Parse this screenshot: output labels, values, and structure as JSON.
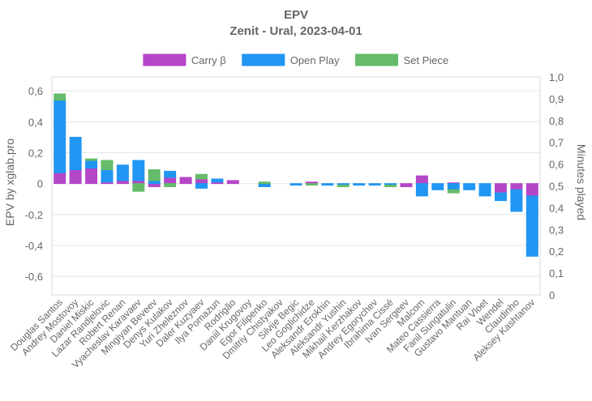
{
  "chart_data": {
    "type": "bar",
    "stacked": true,
    "title": "EPV",
    "subtitle": "Zenit - Ural, 2023-04-01",
    "ylabel": "EPV  by xglab.pro",
    "y2label": "Minutes played",
    "ylim": [
      -0.72,
      0.69
    ],
    "y2lim": [
      0,
      1
    ],
    "yticks": [
      "0,6",
      "0,4",
      "0,2",
      "0",
      "-0,2",
      "-0,4",
      "-0,6"
    ],
    "ytick_values": [
      0.6,
      0.4,
      0.2,
      0,
      -0.2,
      -0.4,
      -0.6
    ],
    "y2ticks": [
      "1,0",
      "0,9",
      "0,8",
      "0,7",
      "0,6",
      "0,5",
      "0,4",
      "0,3",
      "0,2",
      "0,1",
      "0"
    ],
    "y2tick_values": [
      1.0,
      0.9,
      0.8,
      0.7,
      0.6,
      0.5,
      0.4,
      0.3,
      0.2,
      0.1,
      0
    ],
    "grid": true,
    "legend_position": "top",
    "categories": [
      "Douglas Santos",
      "Andrey Mostovoy",
      "Daniel Miskic",
      "Lazar Randjelovic",
      "Robert Renan",
      "Vyacheslav Karavaev",
      "Mingiyan Beveev",
      "Denys Kulakov",
      "Yuri Zheleznov",
      "Daler Kuzyaev",
      "Ilya Pomazun",
      "Rodrigão",
      "Daniil Krugovoy",
      "Egor Filipenko",
      "Dmitriy Chistyakov",
      "Silvije Begic",
      "Leo Goglichidze",
      "Aleksandr Erokhin",
      "Aleksandr Yushin",
      "Mikhail Kerzhakov",
      "Andrey Egorychev",
      "Ibrahima Cissé",
      "Ivan Sergeev",
      "Malcom",
      "Mateo Cassierra",
      "Fanil Sungatulin",
      "Gustavo Mantuan",
      "Rai Vloet",
      "Wendel",
      "Claudinho",
      "Aleksey Kashtanov"
    ],
    "series": [
      {
        "name": "Carry β",
        "color": "#b447c8",
        "values": [
          0.07,
          0.09,
          0.1,
          0.01,
          0.02,
          0.02,
          -0.02,
          0.04,
          0.04,
          0.03,
          0.01,
          0.02,
          0.0,
          0.0,
          0.0,
          0.0,
          0.01,
          0.0,
          0.0,
          0.0,
          0.0,
          0.0,
          -0.02,
          0.05,
          0.0,
          0.005,
          0.0,
          0.0,
          -0.06,
          -0.04,
          -0.08
        ]
      },
      {
        "name": "Open Play",
        "color": "#2196f3",
        "values": [
          0.47,
          0.21,
          0.05,
          0.08,
          0.1,
          0.13,
          0.02,
          0.04,
          0.0,
          -0.03,
          0.02,
          0.0,
          0.0,
          -0.02,
          0.0,
          -0.01,
          0.0,
          -0.01,
          -0.01,
          -0.01,
          -0.01,
          -0.01,
          0.0,
          -0.08,
          -0.04,
          -0.04,
          -0.04,
          -0.08,
          -0.05,
          -0.14,
          -0.39
        ]
      },
      {
        "name": "Set Piece",
        "color": "#66bb6a",
        "values": [
          0.04,
          0.0,
          0.01,
          0.06,
          0.0,
          -0.05,
          0.07,
          -0.02,
          0.0,
          0.03,
          0.0,
          0.0,
          0.0,
          0.01,
          0.0,
          0.0,
          -0.01,
          0.0,
          -0.01,
          0.0,
          0.0,
          -0.01,
          0.0,
          0.0,
          0.0,
          -0.02,
          0.0,
          0.0,
          0.0,
          0.0,
          0.0
        ]
      }
    ]
  }
}
